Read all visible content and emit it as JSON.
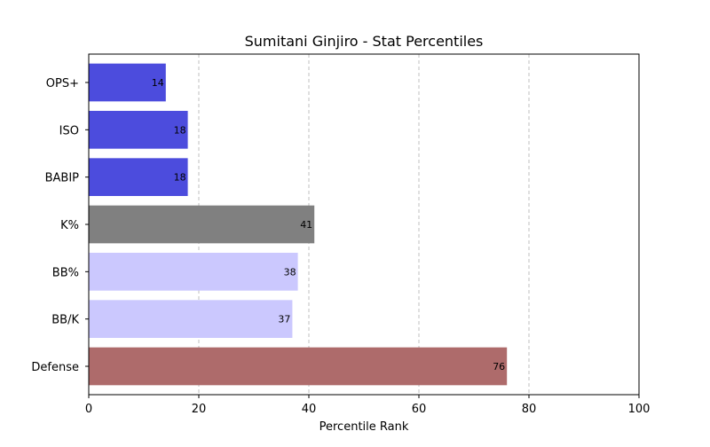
{
  "chart_data": {
    "type": "bar",
    "orientation": "horizontal",
    "title": "Sumitani Ginjiro - Stat Percentiles",
    "xlabel": "Percentile Rank",
    "ylabel": "",
    "xlim": [
      0,
      100
    ],
    "x_ticks": [
      0,
      20,
      40,
      60,
      80,
      100
    ],
    "grid": "vertical dashed",
    "categories": [
      "OPS+",
      "ISO",
      "BABIP",
      "K%",
      "BB%",
      "BB/K",
      "Defense"
    ],
    "values": [
      14,
      18,
      18,
      41,
      38,
      37,
      76
    ],
    "colors": [
      "#4c4cdd",
      "#4c4cdd",
      "#4c4cdd",
      "#808080",
      "#cbc8fe",
      "#cbc8fe",
      "#ae6b6b"
    ],
    "data_labels": [
      "14",
      "18",
      "18",
      "41",
      "38",
      "37",
      "76"
    ]
  }
}
